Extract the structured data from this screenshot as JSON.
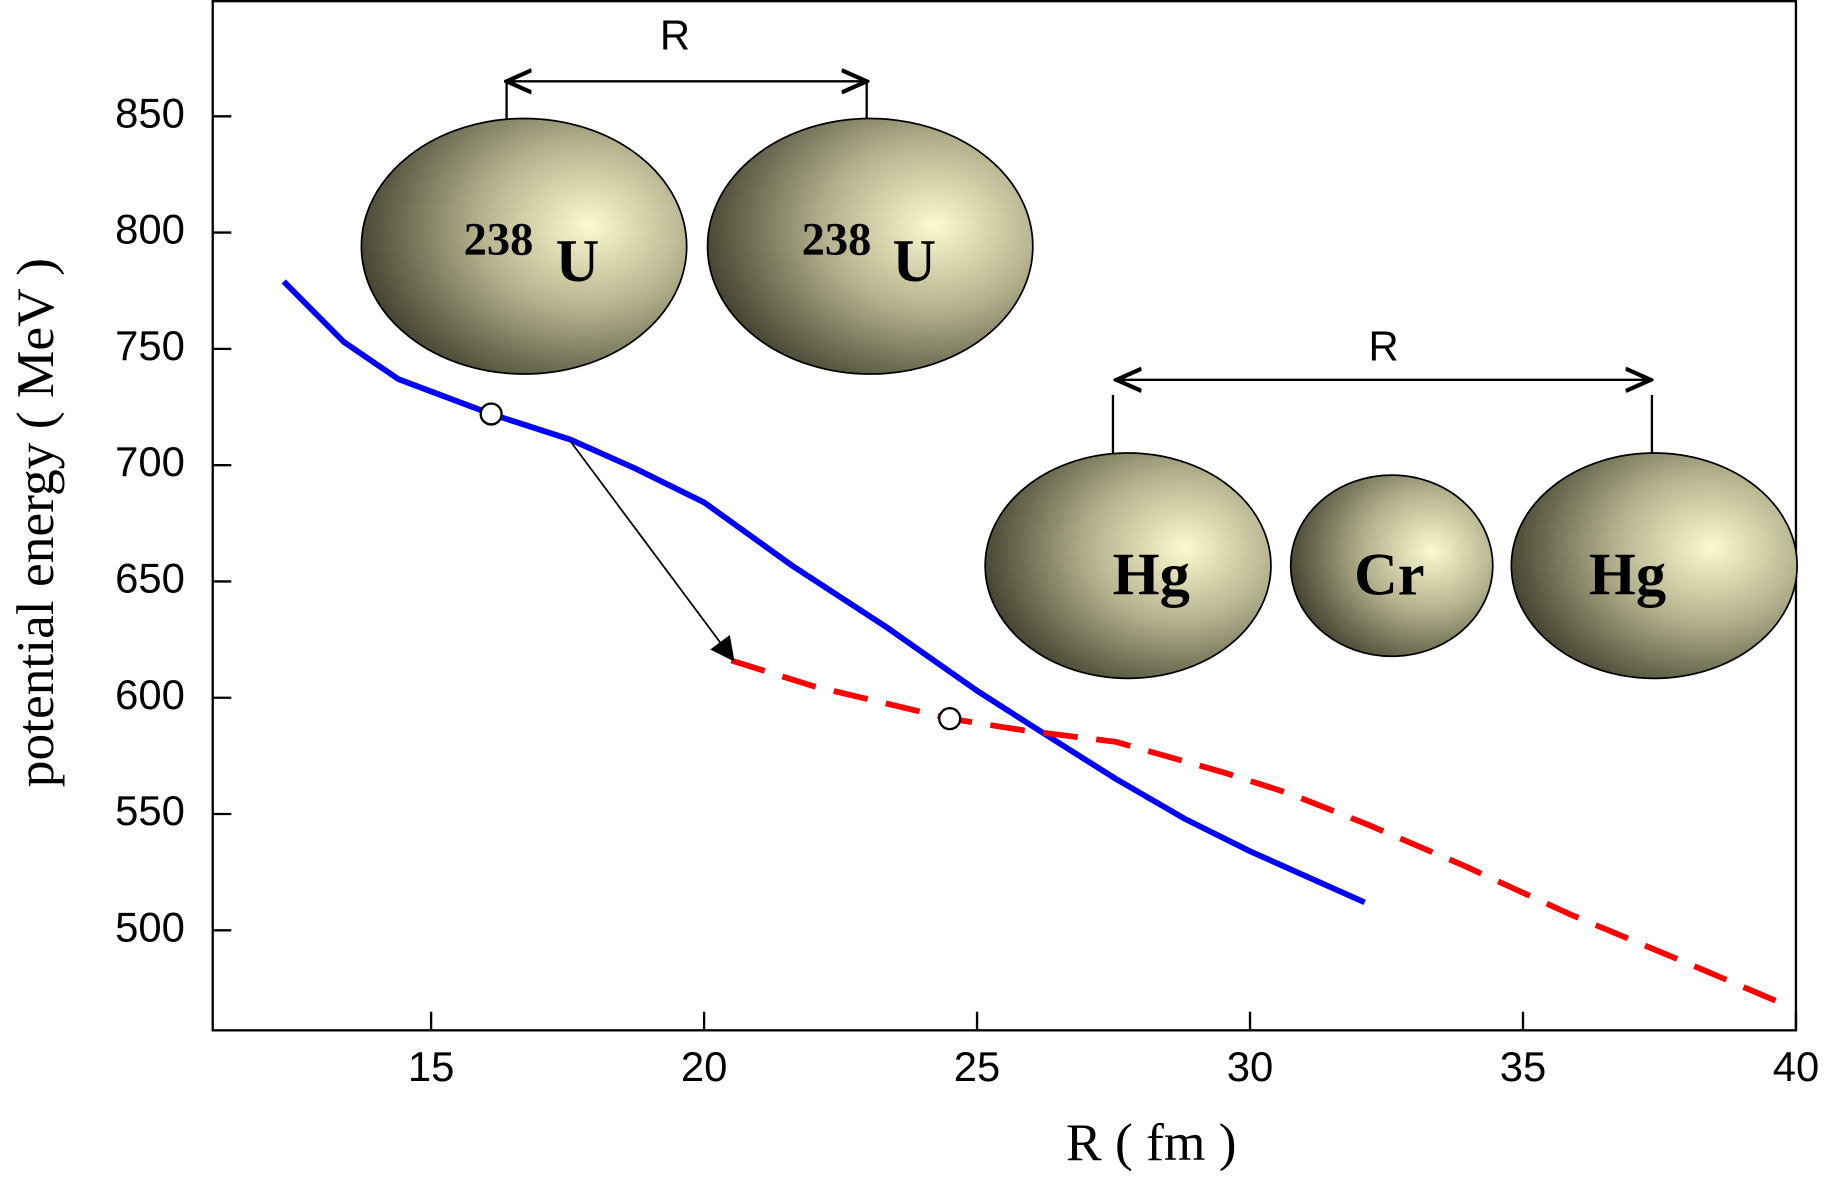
{
  "chart_data": {
    "type": "line",
    "xlabel": "R ( fm )",
    "ylabel": "potential energy ( MeV )",
    "xlim": [
      11,
      40
    ],
    "xticks": [
      15,
      20,
      25,
      30,
      35,
      40
    ],
    "ylim": [
      457,
      900
    ],
    "yticks": [
      500,
      550,
      600,
      650,
      700,
      750,
      800,
      850
    ],
    "series": [
      {
        "color": "#0000ff",
        "dash": false,
        "x": [
          12.3,
          13.4,
          14.4,
          16.1,
          17.55,
          18.7,
          20.0,
          21.6,
          23.3,
          25.0,
          26.4,
          27.55,
          28.8,
          30.0,
          32.1
        ],
        "values": [
          779,
          753,
          737,
          722,
          711,
          699,
          684,
          657,
          631,
          603,
          582,
          565,
          548,
          534,
          512
        ]
      },
      {
        "color": "#ff0000",
        "dash": true,
        "x": [
          20.5,
          22.0,
          24.5,
          25.85,
          27.55,
          29.5,
          30.7,
          32.1,
          33.9,
          35.85,
          38.2,
          39.9
        ],
        "values": [
          616,
          605,
          591,
          586,
          581,
          568,
          559,
          546,
          528,
          507,
          484,
          467
        ]
      }
    ],
    "markers": {
      "x": [
        16.1,
        24.5
      ],
      "values": [
        722,
        591
      ]
    },
    "annotations": [
      "R",
      "238",
      "U",
      "238",
      "U",
      "R",
      "Hg",
      "Cr",
      "Hg"
    ]
  }
}
